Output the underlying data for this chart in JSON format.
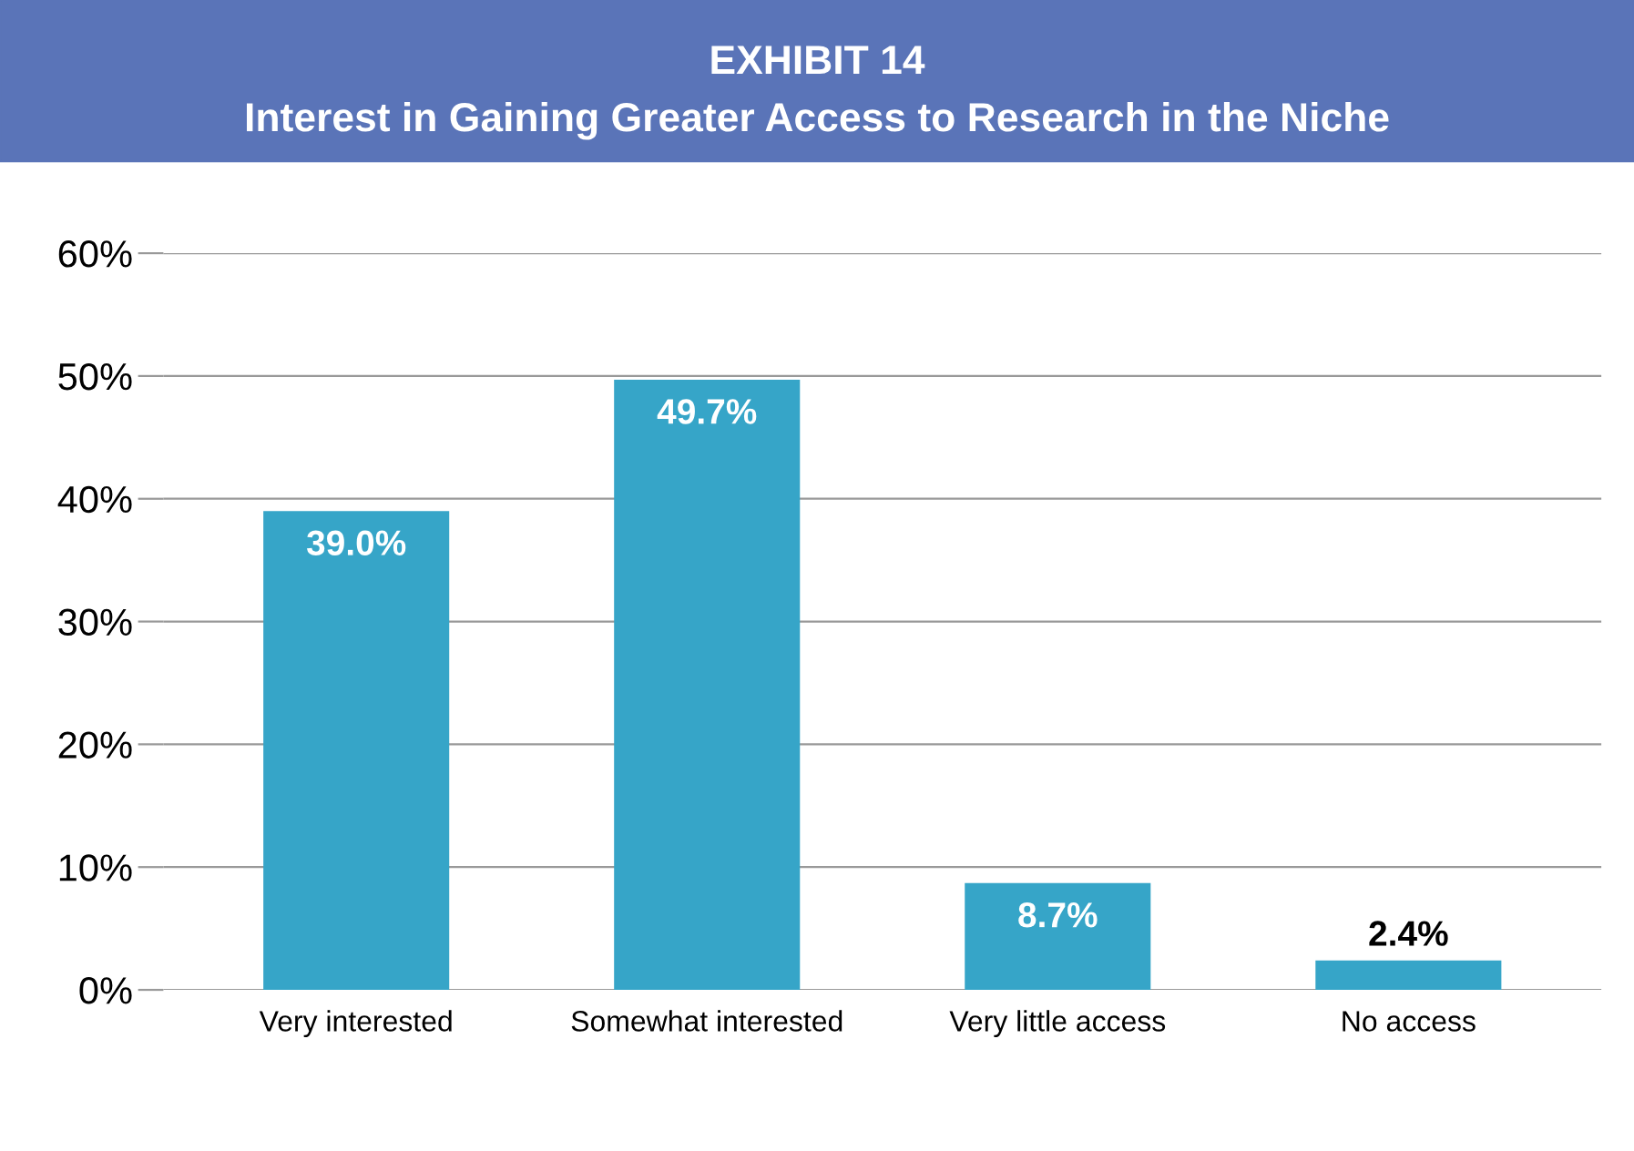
{
  "chart_data": {
    "type": "bar",
    "title": "EXHIBIT 14",
    "subtitle": "Interest in Gaining Greater Access to Research in the Niche",
    "categories": [
      "Very interested",
      "Somewhat interested",
      "Very little access",
      "No access"
    ],
    "values": [
      39.0,
      49.7,
      8.7,
      2.4
    ],
    "value_labels": [
      "39.0%",
      "49.7%",
      "8.7%",
      "2.4%"
    ],
    "color": "#36a5c8",
    "ylim": [
      0,
      60
    ],
    "yticks": [
      {
        "value": 0,
        "label": "0%"
      },
      {
        "value": 10,
        "label": "10%"
      },
      {
        "value": 20,
        "label": "20%"
      },
      {
        "value": 30,
        "label": "30%"
      },
      {
        "value": 40,
        "label": "40%"
      },
      {
        "value": 50,
        "label": "50%"
      },
      {
        "value": 60,
        "label": "60%"
      }
    ],
    "grid": "y",
    "legend": false
  }
}
